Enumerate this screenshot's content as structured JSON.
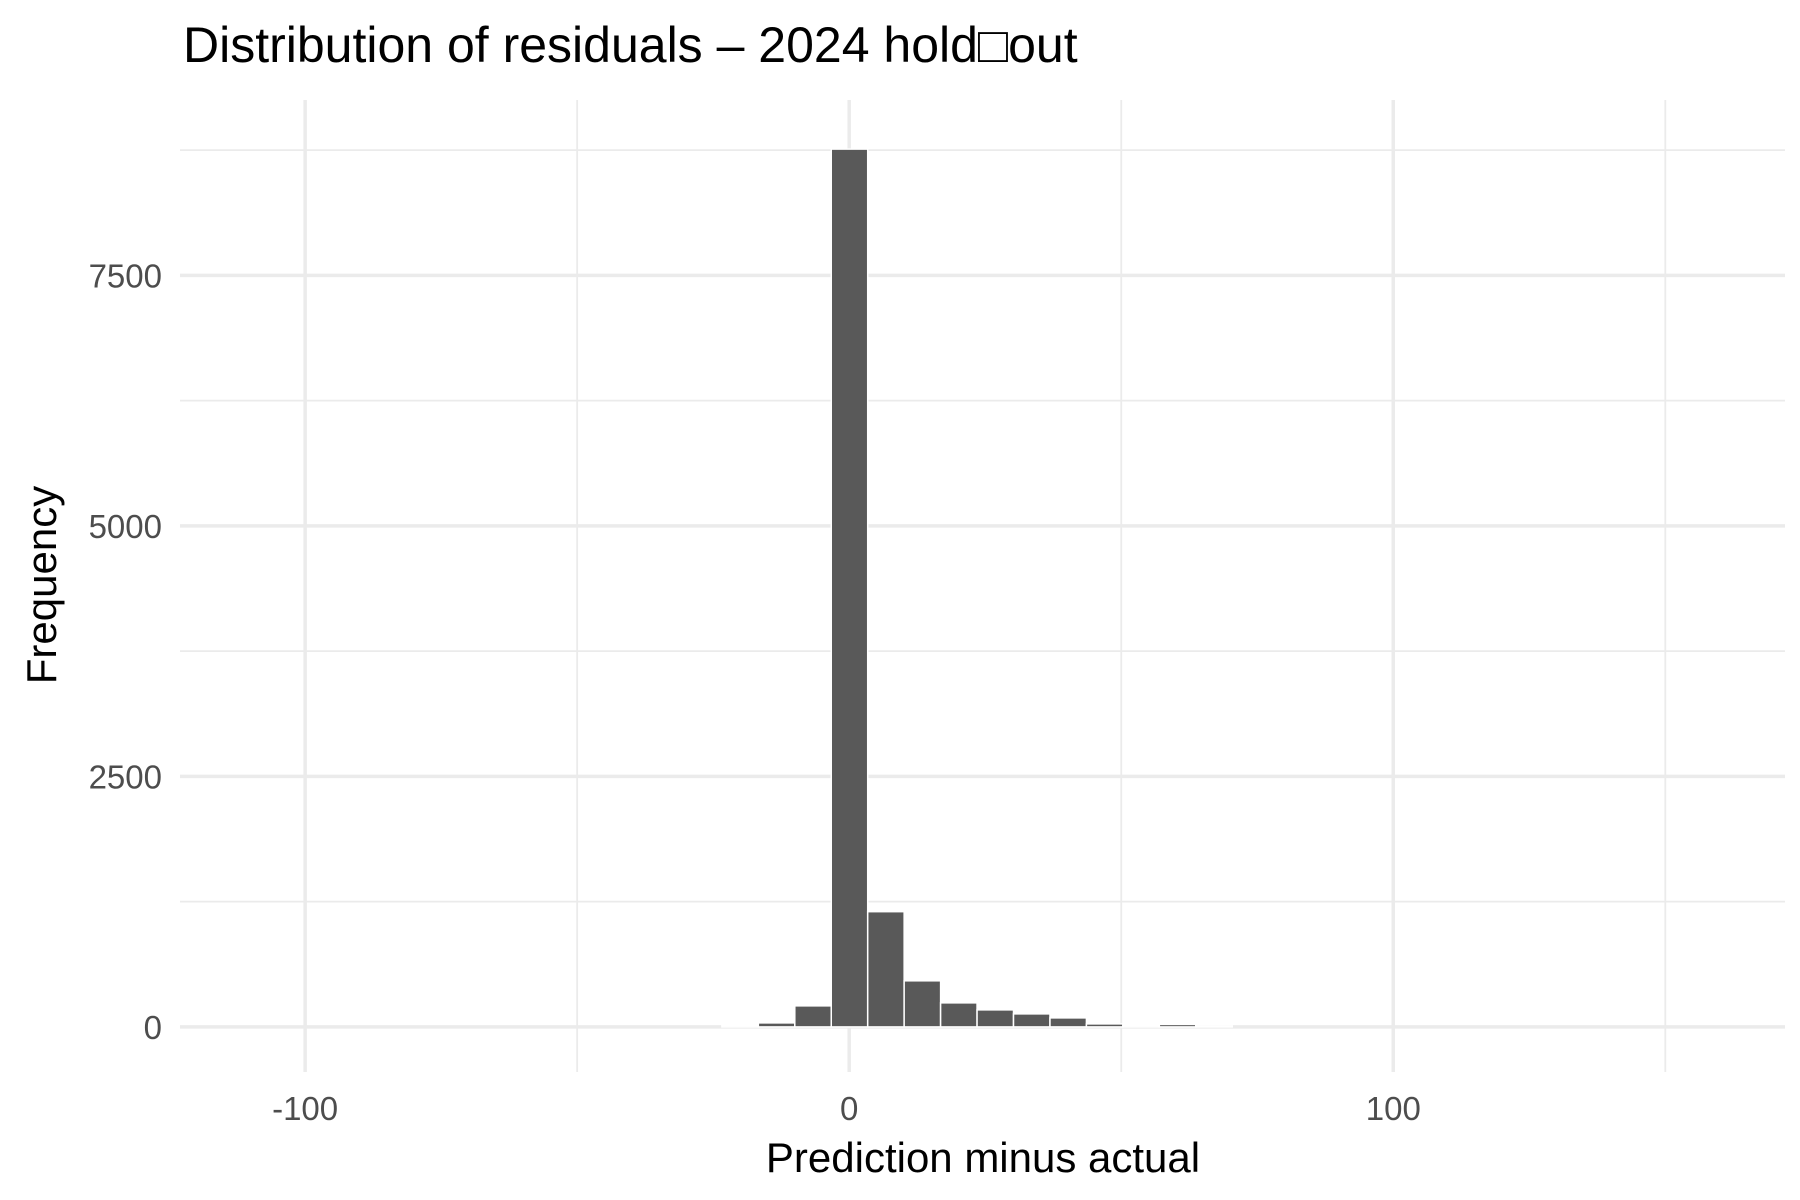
{
  "chart_data": {
    "type": "bar",
    "title": "Distribution of residuals – 2024 hold□out",
    "xlabel": "Prediction minus actual",
    "ylabel": "Frequency",
    "xlim": [
      -123,
      172
    ],
    "ylim": [
      -450,
      9250
    ],
    "x_ticks": [
      -100,
      0,
      100
    ],
    "x_tick_labels": [
      "-100",
      "0",
      "100"
    ],
    "x_minor_ticks": [
      -50,
      50,
      150
    ],
    "y_ticks": [
      0,
      2500,
      5000,
      7500
    ],
    "y_tick_labels": [
      "0",
      "2500",
      "5000",
      "7500"
    ],
    "y_minor_ticks": [
      1250,
      3750,
      6250,
      8750
    ],
    "grid": true,
    "bin_width": 6.7,
    "bins": [
      {
        "start": -23.4,
        "count": 15
      },
      {
        "start": -16.7,
        "count": 40
      },
      {
        "start": -10.0,
        "count": 210
      },
      {
        "start": -3.3,
        "count": 8760
      },
      {
        "start": 3.4,
        "count": 1150
      },
      {
        "start": 10.1,
        "count": 460
      },
      {
        "start": 16.8,
        "count": 240
      },
      {
        "start": 23.5,
        "count": 170
      },
      {
        "start": 30.2,
        "count": 130
      },
      {
        "start": 36.9,
        "count": 90
      },
      {
        "start": 43.6,
        "count": 30
      },
      {
        "start": 50.3,
        "count": 15
      },
      {
        "start": 57.0,
        "count": 25
      },
      {
        "start": 63.7,
        "count": 10
      }
    ]
  }
}
